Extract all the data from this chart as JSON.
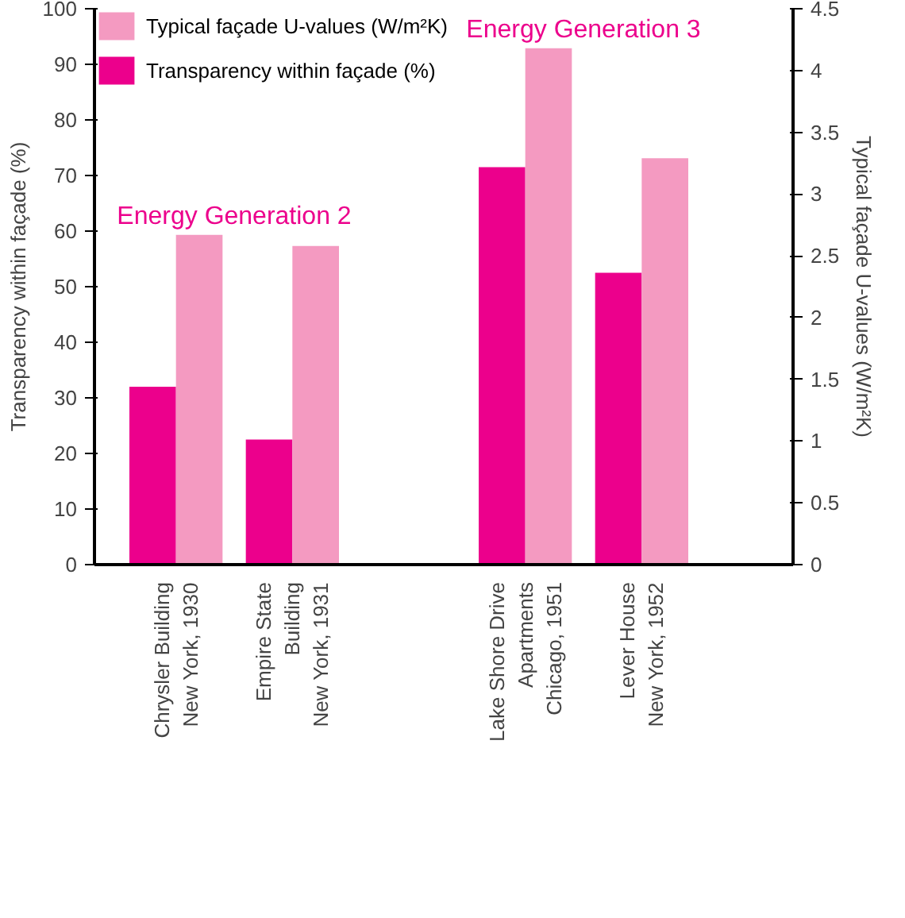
{
  "chart_data": {
    "type": "bar",
    "categories": [
      "Chrysler Building\nNew York, 1930",
      "Empire State\nBuilding\nNew York, 1931",
      null,
      "Lake Shore Drive\nApartments\nChicago, 1951",
      "Lever House\nNew York, 1952"
    ],
    "series": [
      {
        "name": "Transparency within façade (%)",
        "color": "#ec008c",
        "values": [
          32,
          22.5,
          null,
          71.5,
          52.5
        ]
      },
      {
        "name": "Typical façade U-values (W/m²K)",
        "color": "#f49ac1",
        "axis": "y2",
        "values": [
          2.67,
          2.58,
          null,
          4.18,
          3.29
        ]
      }
    ],
    "ylabel": "Transparency within façade (%)",
    "y2label": "Typical façade U-values (W/m²K)",
    "ylim": [
      0,
      100
    ],
    "yticks": [
      0,
      10,
      20,
      30,
      40,
      50,
      60,
      70,
      80,
      90,
      100
    ],
    "y2lim": [
      0,
      4.5
    ],
    "y2ticks": [
      0,
      0.5,
      1,
      1.5,
      2,
      2.5,
      3,
      3.5,
      4,
      4.5
    ],
    "annotations": [
      "Energy Generation 2",
      "Energy Generation 3"
    ],
    "grid": false,
    "legend": "top left"
  }
}
